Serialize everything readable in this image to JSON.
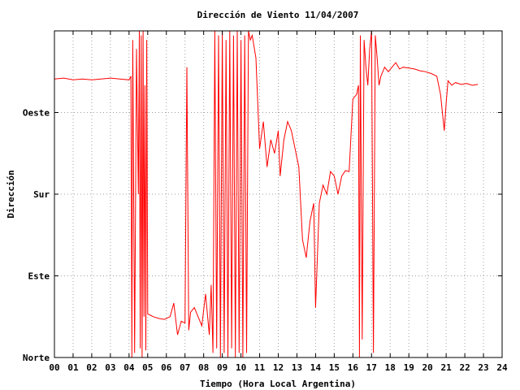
{
  "chart_data": {
    "type": "line",
    "title": "Dirección de Viento 11/04/2007",
    "xlabel": "Tiempo (Hora Local Argentina)",
    "ylabel": "Dirección",
    "xlim": [
      0,
      24
    ],
    "ylim": [
      0,
      360
    ],
    "x_ticks": [
      {
        "value": 0,
        "label": "00"
      },
      {
        "value": 1,
        "label": "01"
      },
      {
        "value": 2,
        "label": "02"
      },
      {
        "value": 3,
        "label": "03"
      },
      {
        "value": 4,
        "label": "04"
      },
      {
        "value": 5,
        "label": "05"
      },
      {
        "value": 6,
        "label": "06"
      },
      {
        "value": 7,
        "label": "07"
      },
      {
        "value": 8,
        "label": "08"
      },
      {
        "value": 9,
        "label": "09"
      },
      {
        "value": 10,
        "label": "10"
      },
      {
        "value": 11,
        "label": "11"
      },
      {
        "value": 12,
        "label": "12"
      },
      {
        "value": 13,
        "label": "13"
      },
      {
        "value": 14,
        "label": "14"
      },
      {
        "value": 15,
        "label": "15"
      },
      {
        "value": 16,
        "label": "16"
      },
      {
        "value": 17,
        "label": "17"
      },
      {
        "value": 18,
        "label": "18"
      },
      {
        "value": 19,
        "label": "19"
      },
      {
        "value": 20,
        "label": "20"
      },
      {
        "value": 21,
        "label": "21"
      },
      {
        "value": 22,
        "label": "22"
      },
      {
        "value": 23,
        "label": "23"
      },
      {
        "value": 24,
        "label": "24"
      }
    ],
    "y_ticks": [
      {
        "value": 0,
        "label": "Norte"
      },
      {
        "value": 90,
        "label": "Este"
      },
      {
        "value": 180,
        "label": "Sur"
      },
      {
        "value": 270,
        "label": "Oeste"
      }
    ],
    "grid": true,
    "legend": "none",
    "series": [
      {
        "color": "#ff0000",
        "x": [
          0.0,
          0.5,
          1.0,
          1.5,
          2.0,
          2.5,
          3.0,
          3.5,
          4.0,
          4.1,
          4.15,
          4.2,
          4.3,
          4.4,
          4.5,
          4.55,
          4.6,
          4.65,
          4.7,
          4.75,
          4.8,
          4.85,
          4.9,
          4.95,
          5.0,
          5.1,
          5.3,
          5.6,
          5.9,
          6.2,
          6.4,
          6.6,
          6.8,
          7.0,
          7.1,
          7.2,
          7.3,
          7.5,
          7.7,
          7.9,
          8.1,
          8.3,
          8.4,
          8.5,
          8.6,
          8.7,
          8.8,
          8.9,
          9.0,
          9.1,
          9.2,
          9.3,
          9.4,
          9.5,
          9.6,
          9.7,
          9.8,
          9.9,
          10.0,
          10.1,
          10.2,
          10.3,
          10.4,
          10.5,
          10.6,
          10.8,
          11.0,
          11.2,
          11.4,
          11.6,
          11.8,
          12.0,
          12.1,
          12.3,
          12.5,
          12.7,
          12.9,
          13.1,
          13.3,
          13.5,
          13.7,
          13.9,
          14.0,
          14.2,
          14.4,
          14.6,
          14.8,
          15.0,
          15.2,
          15.4,
          15.6,
          15.8,
          16.0,
          16.2,
          16.3,
          16.35,
          16.4,
          16.5,
          16.6,
          16.7,
          16.8,
          16.9,
          17.0,
          17.1,
          17.2,
          17.3,
          17.4,
          17.5,
          17.7,
          17.9,
          18.1,
          18.3,
          18.5,
          18.7,
          19.0,
          19.3,
          19.6,
          19.9,
          20.2,
          20.5,
          20.7,
          20.9,
          21.0,
          21.1,
          21.3,
          21.5,
          21.8,
          22.1,
          22.4,
          22.7
        ],
        "y": [
          307,
          308,
          306,
          307,
          306,
          307,
          308,
          307,
          306,
          310,
          0,
          350,
          5,
          340,
          180,
          360,
          10,
          355,
          0,
          360,
          45,
          300,
          8,
          350,
          48,
          47,
          45,
          43,
          42,
          45,
          60,
          25,
          40,
          38,
          320,
          30,
          50,
          55,
          45,
          35,
          70,
          25,
          80,
          5,
          360,
          10,
          355,
          0,
          360,
          5,
          350,
          0,
          360,
          10,
          355,
          0,
          360,
          5,
          350,
          0,
          355,
          5,
          360,
          350,
          355,
          330,
          230,
          260,
          210,
          240,
          225,
          250,
          200,
          240,
          260,
          250,
          230,
          210,
          130,
          110,
          150,
          170,
          55,
          170,
          190,
          180,
          205,
          200,
          180,
          200,
          206,
          205,
          285,
          290,
          300,
          0,
          355,
          20,
          350,
          320,
          300,
          340,
          360,
          5,
          355,
          330,
          300,
          310,
          320,
          315,
          320,
          325,
          318,
          320,
          319,
          318,
          316,
          315,
          313,
          310,
          290,
          250,
          280,
          305,
          300,
          303,
          301,
          302,
          300,
          301
        ]
      }
    ]
  }
}
